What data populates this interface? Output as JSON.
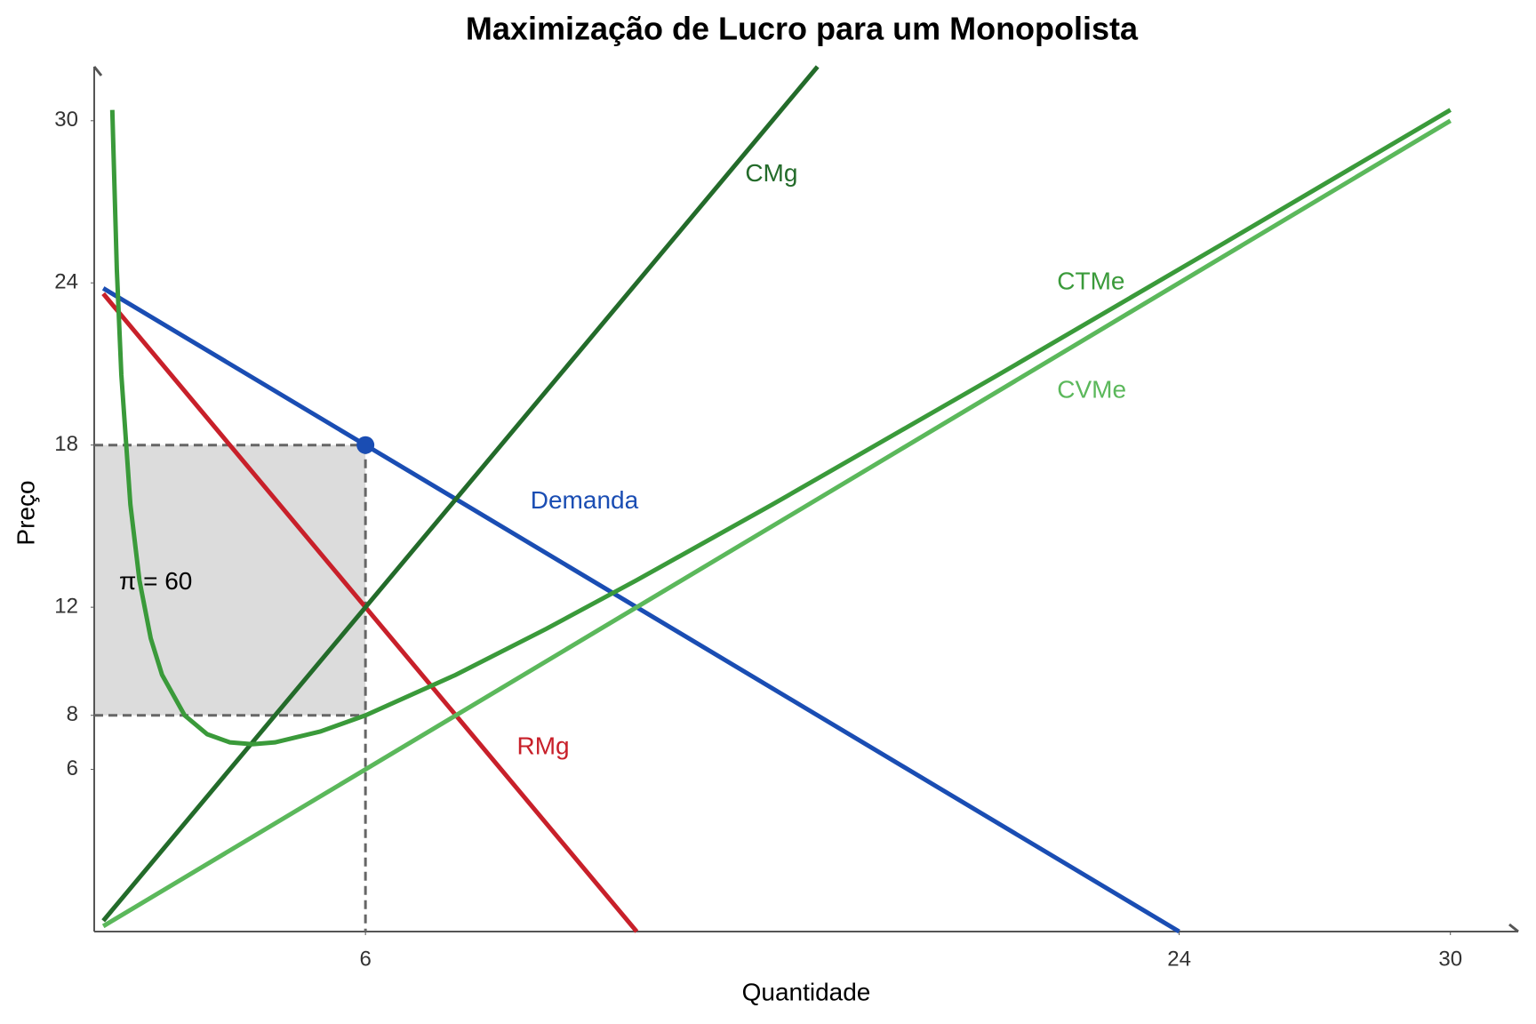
{
  "chart_data": {
    "type": "line",
    "title": "Maximização de Lucro para um Monopolista",
    "xlabel": "Quantidade",
    "ylabel": "Preço",
    "xlim": [
      0,
      31.5
    ],
    "ylim": [
      0,
      32
    ],
    "xticks": [
      6,
      24,
      30
    ],
    "yticks": [
      6,
      8,
      12,
      18,
      24,
      30
    ],
    "series": [
      {
        "name": "Demanda",
        "color": "#1a4db3",
        "x": [
          0.2,
          24
        ],
        "values": [
          23.8,
          0
        ]
      },
      {
        "name": "RMg",
        "color": "#c8202a",
        "x": [
          0.2,
          12
        ],
        "values": [
          23.6,
          0
        ]
      },
      {
        "name": "CMg",
        "color": "#236b2a",
        "x": [
          0.2,
          16
        ],
        "values": [
          0.4,
          32
        ]
      },
      {
        "name": "CTMe",
        "color": "#3a9a3a",
        "x": [
          0.4,
          0.5,
          0.6,
          0.8,
          1,
          1.25,
          1.5,
          2,
          2.5,
          3,
          3.5,
          4,
          5,
          6,
          8,
          10,
          12,
          15,
          20,
          25,
          30
        ],
        "values": [
          30.4,
          24.5,
          20.6,
          15.8,
          13,
          10.85,
          9.5,
          8,
          7.3,
          7,
          6.93,
          7,
          7.4,
          8,
          9.5,
          11.2,
          13,
          15.8,
          20.6,
          25.48,
          30.4
        ]
      },
      {
        "name": "CVMe",
        "color": "#5bb85b",
        "x": [
          0.2,
          30
        ],
        "values": [
          0.2,
          30
        ]
      }
    ],
    "point": {
      "x": 6,
      "y": 18,
      "color": "#1a4db3"
    },
    "profit_area": {
      "x": [
        0,
        6
      ],
      "y": [
        8,
        18
      ],
      "color": "#dcdcdc"
    },
    "annotation": "π = 60"
  }
}
